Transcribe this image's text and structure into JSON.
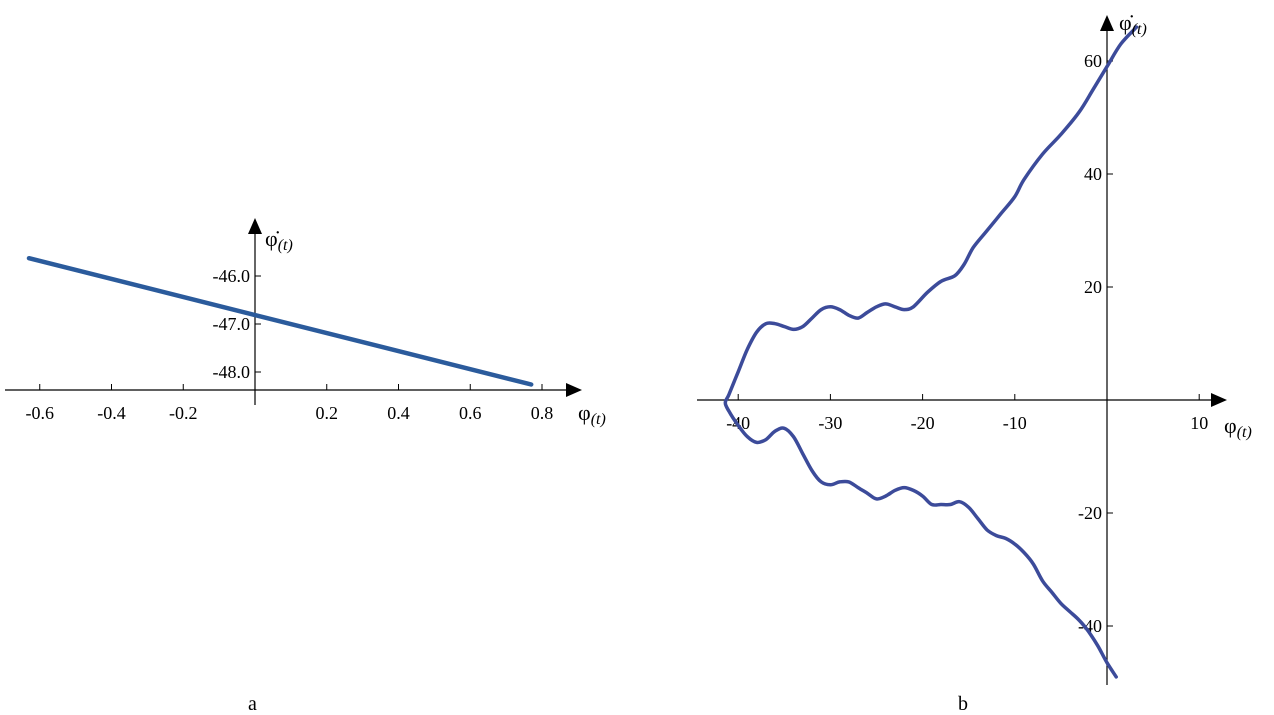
{
  "chart_data": [
    {
      "type": "line",
      "panel_label": "a",
      "xlabel": "φ",
      "xlabel_sub": "(t)",
      "ylabel": "φ̇",
      "ylabel_sub": "(t)",
      "xlim": [
        -0.63,
        0.78
      ],
      "ylim": [
        -48.28,
        -45.4
      ],
      "xticks": [
        -0.6,
        -0.4,
        -0.2,
        0.2,
        0.4,
        0.6,
        0.8
      ],
      "xtick_labels": [
        "-0.6",
        "-0.4",
        "-0.2",
        "0.2",
        "0.4",
        "0.6",
        "0.8"
      ],
      "yticks": [
        -46.0,
        -47.0,
        -48.0
      ],
      "ytick_labels": [
        "-46.0",
        "-47.0",
        "-48.0"
      ],
      "line_color": "#2b5b9c",
      "series": [
        {
          "x": [
            -0.63,
            0.77
          ],
          "y": [
            -45.63,
            -48.26
          ]
        }
      ]
    },
    {
      "type": "line",
      "panel_label": "b",
      "xlabel": "φ",
      "xlabel_sub": "(t)",
      "ylabel": "φ̇",
      "ylabel_sub": "(t)",
      "xlim": [
        -45,
        12
      ],
      "ylim": [
        -52,
        68
      ],
      "xticks": [
        -40,
        -30,
        -20,
        -10,
        10
      ],
      "xtick_labels": [
        "-40",
        "-30",
        "-20",
        "-10",
        "10"
      ],
      "yticks": [
        60,
        40,
        20,
        -20,
        -40
      ],
      "ytick_labels": [
        "60",
        "40",
        "20",
        "-20",
        "-40"
      ],
      "line_color": "#3c4b9a",
      "series": [
        {
          "x": [
            3.2,
            1.5,
            0.0,
            -1.5,
            -3.0,
            -5.0,
            -7.0,
            -9.0,
            -10.0,
            -11.5,
            -13.0,
            -14.5,
            -15.5,
            -16.5,
            -18.0,
            -19.5,
            -21.0,
            -22.0,
            -23.0,
            -24.0,
            -25.0,
            -26.0,
            -27.0,
            -28.0,
            -29.0,
            -30.0,
            -31.0,
            -32.0,
            -33.0,
            -34.0,
            -35.0,
            -36.0,
            -37.0,
            -38.0,
            -39.0,
            -40.0,
            -41.0,
            -41.4,
            -41.0,
            -40.0,
            -39.0,
            -38.0,
            -37.0,
            -36.0,
            -35.0,
            -34.0,
            -33.0,
            -32.0,
            -31.0,
            -30.0,
            -29.0,
            -28.0,
            -27.0,
            -26.0,
            -25.0,
            -24.0,
            -23.0,
            -22.0,
            -21.0,
            -20.0,
            -19.0,
            -18.0,
            -17.0,
            -16.0,
            -15.0,
            -14.0,
            -13.0,
            -12.0,
            -11.0,
            -10.0,
            -9.0,
            -8.0,
            -7.0,
            -6.0,
            -5.0,
            -4.0,
            -3.0,
            -2.0,
            -1.0,
            0.0,
            1.0
          ],
          "y": [
            66.0,
            63.0,
            59.0,
            55.0,
            51.0,
            47.0,
            43.5,
            39.0,
            36.0,
            33.0,
            30.0,
            27.0,
            24.0,
            22.0,
            21.0,
            19.0,
            16.5,
            16.0,
            16.5,
            17.0,
            16.5,
            15.5,
            14.5,
            15.0,
            16.0,
            16.5,
            16.0,
            14.5,
            13.0,
            12.5,
            13.0,
            13.5,
            13.5,
            12.0,
            9.0,
            5.0,
            1.0,
            -0.5,
            -2.0,
            -4.5,
            -6.5,
            -7.5,
            -7.0,
            -5.5,
            -5.0,
            -6.5,
            -9.5,
            -12.5,
            -14.5,
            -15.0,
            -14.5,
            -14.5,
            -15.5,
            -16.5,
            -17.5,
            -17.0,
            -16.0,
            -15.5,
            -16.0,
            -17.0,
            -18.5,
            -18.5,
            -18.5,
            -18.0,
            -19.0,
            -21.0,
            -23.0,
            -24.0,
            -24.5,
            -25.5,
            -27.0,
            -29.0,
            -32.0,
            -34.0,
            -36.0,
            -37.5,
            -39.0,
            -41.0,
            -43.5,
            -46.5,
            -49.0
          ]
        }
      ]
    }
  ]
}
